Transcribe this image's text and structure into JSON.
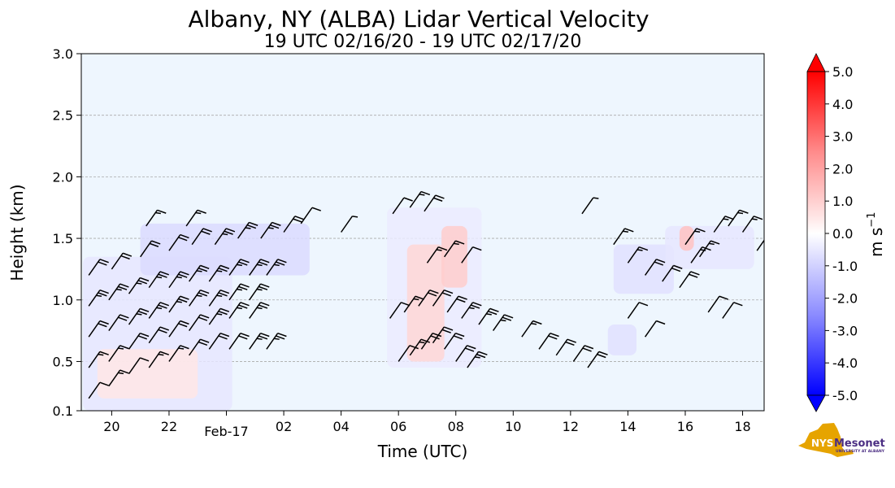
{
  "chart_data": {
    "type": "heatmap",
    "title": "Albany, NY (ALBA) Lidar Vertical Velocity",
    "subtitle": "19 UTC 02/16/20 - 19 UTC 02/17/20",
    "xlabel": "Time (UTC)",
    "ylabel": "Height (km)",
    "xlim_hours_from_00utc_0216": [
      18.94,
      42.75
    ],
    "ylim_km": [
      0.1,
      3.0
    ],
    "x_ticks": [
      {
        "h": 20,
        "label": "20"
      },
      {
        "h": 22,
        "label": "22"
      },
      {
        "h": 26,
        "label": "02"
      },
      {
        "h": 28,
        "label": "04"
      },
      {
        "h": 30,
        "label": "06"
      },
      {
        "h": 32,
        "label": "08"
      },
      {
        "h": 34,
        "label": "10"
      },
      {
        "h": 36,
        "label": "12"
      },
      {
        "h": 38,
        "label": "14"
      },
      {
        "h": 40,
        "label": "16"
      },
      {
        "h": 42,
        "label": "18"
      }
    ],
    "x_date_tick": {
      "h": 24,
      "label": "Feb-17"
    },
    "y_ticks": [
      {
        "v": 0.1,
        "label": "0.1"
      },
      {
        "v": 0.5,
        "label": "0.5"
      },
      {
        "v": 1.0,
        "label": "1.0"
      },
      {
        "v": 1.5,
        "label": "1.5"
      },
      {
        "v": 2.0,
        "label": "2.0"
      },
      {
        "v": 2.5,
        "label": "2.5"
      },
      {
        "v": 3.0,
        "label": "3.0"
      }
    ],
    "grid": "horizontal dashed",
    "colorbar": {
      "label": "m s",
      "label_exponent": "−1",
      "vmin": -5.0,
      "vmax": 5.0,
      "extend": "both",
      "ticks": [
        {
          "v": 5.0,
          "label": "5.0"
        },
        {
          "v": 4.0,
          "label": "4.0"
        },
        {
          "v": 3.0,
          "label": "3.0"
        },
        {
          "v": 2.0,
          "label": "2.0"
        },
        {
          "v": 1.0,
          "label": "1.0"
        },
        {
          "v": 0.0,
          "label": "0.0"
        },
        {
          "v": -1.0,
          "label": "-1.0"
        },
        {
          "v": -2.0,
          "label": "-2.0"
        },
        {
          "v": -3.0,
          "label": "-3.0"
        },
        {
          "v": -4.0,
          "label": "-4.0"
        },
        {
          "v": -5.0,
          "label": "-5.0"
        }
      ]
    },
    "velocity_regions": [
      {
        "t0": 19.0,
        "t1": 24.2,
        "z0": 0.1,
        "z1": 1.35,
        "w": -0.5
      },
      {
        "t0": 21.0,
        "t1": 26.9,
        "z0": 1.2,
        "z1": 1.62,
        "w": -0.7
      },
      {
        "t0": 19.5,
        "t1": 23.0,
        "z0": 0.2,
        "z1": 0.6,
        "w": 0.5
      },
      {
        "t0": 29.6,
        "t1": 32.9,
        "z0": 0.45,
        "z1": 1.75,
        "w": -0.4
      },
      {
        "t0": 30.3,
        "t1": 31.6,
        "z0": 0.5,
        "z1": 1.45,
        "w": 0.8
      },
      {
        "t0": 31.5,
        "t1": 32.4,
        "z0": 1.1,
        "z1": 1.6,
        "w": 1.0
      },
      {
        "t0": 37.5,
        "t1": 39.6,
        "z0": 1.05,
        "z1": 1.45,
        "w": -0.6
      },
      {
        "t0": 39.3,
        "t1": 42.4,
        "z0": 1.25,
        "z1": 1.6,
        "w": -0.5
      },
      {
        "t0": 39.8,
        "t1": 40.3,
        "z0": 1.4,
        "z1": 1.6,
        "w": 1.2
      },
      {
        "t0": 37.3,
        "t1": 38.3,
        "z0": 0.55,
        "z1": 0.8,
        "w": -0.6
      }
    ],
    "wind_barbs": [
      {
        "t": 19.2,
        "z": 0.2,
        "kt": 10
      },
      {
        "t": 19.9,
        "z": 0.3,
        "kt": 15
      },
      {
        "t": 20.6,
        "z": 0.4,
        "kt": 10
      },
      {
        "t": 21.3,
        "z": 0.45,
        "kt": 15
      },
      {
        "t": 22.0,
        "z": 0.5,
        "kt": 15
      },
      {
        "t": 22.7,
        "z": 0.55,
        "kt": 20
      },
      {
        "t": 23.4,
        "z": 0.6,
        "kt": 20
      },
      {
        "t": 24.1,
        "z": 0.6,
        "kt": 20
      },
      {
        "t": 24.8,
        "z": 0.6,
        "kt": 25
      },
      {
        "t": 25.4,
        "z": 0.6,
        "kt": 25
      },
      {
        "t": 19.2,
        "z": 0.45,
        "kt": 15
      },
      {
        "t": 19.9,
        "z": 0.5,
        "kt": 15
      },
      {
        "t": 20.6,
        "z": 0.6,
        "kt": 20
      },
      {
        "t": 21.3,
        "z": 0.65,
        "kt": 20
      },
      {
        "t": 22.0,
        "z": 0.7,
        "kt": 20
      },
      {
        "t": 22.7,
        "z": 0.75,
        "kt": 20
      },
      {
        "t": 23.4,
        "z": 0.8,
        "kt": 25
      },
      {
        "t": 24.1,
        "z": 0.85,
        "kt": 25
      },
      {
        "t": 24.8,
        "z": 0.85,
        "kt": 25
      },
      {
        "t": 19.2,
        "z": 0.7,
        "kt": 20
      },
      {
        "t": 19.9,
        "z": 0.75,
        "kt": 20
      },
      {
        "t": 20.6,
        "z": 0.8,
        "kt": 25
      },
      {
        "t": 21.3,
        "z": 0.85,
        "kt": 25
      },
      {
        "t": 22.0,
        "z": 0.9,
        "kt": 25
      },
      {
        "t": 22.7,
        "z": 0.95,
        "kt": 25
      },
      {
        "t": 23.4,
        "z": 0.95,
        "kt": 25
      },
      {
        "t": 24.1,
        "z": 1.0,
        "kt": 25
      },
      {
        "t": 24.8,
        "z": 1.0,
        "kt": 25
      },
      {
        "t": 19.2,
        "z": 0.95,
        "kt": 25
      },
      {
        "t": 19.9,
        "z": 1.0,
        "kt": 25
      },
      {
        "t": 20.6,
        "z": 1.05,
        "kt": 25
      },
      {
        "t": 21.3,
        "z": 1.1,
        "kt": 25
      },
      {
        "t": 22.0,
        "z": 1.1,
        "kt": 25
      },
      {
        "t": 22.7,
        "z": 1.15,
        "kt": 25
      },
      {
        "t": 23.4,
        "z": 1.15,
        "kt": 25
      },
      {
        "t": 24.1,
        "z": 1.2,
        "kt": 25
      },
      {
        "t": 24.8,
        "z": 1.2,
        "kt": 25
      },
      {
        "t": 25.4,
        "z": 1.2,
        "kt": 25
      },
      {
        "t": 19.2,
        "z": 1.2,
        "kt": 20
      },
      {
        "t": 20.0,
        "z": 1.25,
        "kt": 20
      },
      {
        "t": 21.0,
        "z": 1.35,
        "kt": 20
      },
      {
        "t": 22.0,
        "z": 1.4,
        "kt": 20
      },
      {
        "t": 22.8,
        "z": 1.45,
        "kt": 20
      },
      {
        "t": 23.6,
        "z": 1.45,
        "kt": 25
      },
      {
        "t": 24.4,
        "z": 1.5,
        "kt": 25
      },
      {
        "t": 25.2,
        "z": 1.5,
        "kt": 25
      },
      {
        "t": 26.0,
        "z": 1.55,
        "kt": 20
      },
      {
        "t": 21.2,
        "z": 1.6,
        "kt": 15
      },
      {
        "t": 22.6,
        "z": 1.6,
        "kt": 15
      },
      {
        "t": 26.6,
        "z": 1.62,
        "kt": 10
      },
      {
        "t": 28.0,
        "z": 1.55,
        "kt": 5
      },
      {
        "t": 29.8,
        "z": 1.7,
        "kt": 10
      },
      {
        "t": 30.4,
        "z": 1.75,
        "kt": 15
      },
      {
        "t": 30.9,
        "z": 1.72,
        "kt": 20
      },
      {
        "t": 30.0,
        "z": 0.5,
        "kt": 10
      },
      {
        "t": 30.4,
        "z": 0.55,
        "kt": 15
      },
      {
        "t": 30.8,
        "z": 0.6,
        "kt": 20
      },
      {
        "t": 31.2,
        "z": 0.65,
        "kt": 20
      },
      {
        "t": 31.6,
        "z": 0.6,
        "kt": 20
      },
      {
        "t": 32.0,
        "z": 0.5,
        "kt": 20
      },
      {
        "t": 32.4,
        "z": 0.45,
        "kt": 25
      },
      {
        "t": 29.7,
        "z": 0.85,
        "kt": 10
      },
      {
        "t": 30.2,
        "z": 0.9,
        "kt": 15
      },
      {
        "t": 30.7,
        "z": 0.95,
        "kt": 20
      },
      {
        "t": 31.2,
        "z": 0.95,
        "kt": 20
      },
      {
        "t": 31.7,
        "z": 0.9,
        "kt": 20
      },
      {
        "t": 32.2,
        "z": 0.85,
        "kt": 25
      },
      {
        "t": 32.8,
        "z": 0.8,
        "kt": 25
      },
      {
        "t": 33.3,
        "z": 0.75,
        "kt": 25
      },
      {
        "t": 31.0,
        "z": 1.3,
        "kt": 15
      },
      {
        "t": 31.6,
        "z": 1.35,
        "kt": 15
      },
      {
        "t": 32.2,
        "z": 1.3,
        "kt": 10
      },
      {
        "t": 34.3,
        "z": 0.7,
        "kt": 15
      },
      {
        "t": 34.9,
        "z": 0.6,
        "kt": 20
      },
      {
        "t": 35.5,
        "z": 0.55,
        "kt": 20
      },
      {
        "t": 36.1,
        "z": 0.5,
        "kt": 20
      },
      {
        "t": 36.6,
        "z": 0.45,
        "kt": 20
      },
      {
        "t": 36.4,
        "z": 1.7,
        "kt": 5
      },
      {
        "t": 37.5,
        "z": 1.45,
        "kt": 15
      },
      {
        "t": 38.0,
        "z": 1.3,
        "kt": 15
      },
      {
        "t": 38.6,
        "z": 1.2,
        "kt": 20
      },
      {
        "t": 39.2,
        "z": 1.15,
        "kt": 20
      },
      {
        "t": 39.8,
        "z": 1.1,
        "kt": 20
      },
      {
        "t": 38.0,
        "z": 0.85,
        "kt": 10
      },
      {
        "t": 38.6,
        "z": 0.7,
        "kt": 10
      },
      {
        "t": 40.0,
        "z": 1.45,
        "kt": 15
      },
      {
        "t": 40.5,
        "z": 1.35,
        "kt": 15
      },
      {
        "t": 40.2,
        "z": 1.3,
        "kt": 15
      },
      {
        "t": 41.0,
        "z": 1.55,
        "kt": 15
      },
      {
        "t": 41.5,
        "z": 1.6,
        "kt": 15
      },
      {
        "t": 42.0,
        "z": 1.55,
        "kt": 15
      },
      {
        "t": 42.5,
        "z": 1.4,
        "kt": 10
      },
      {
        "t": 40.8,
        "z": 0.9,
        "kt": 10
      },
      {
        "t": 41.3,
        "z": 0.85,
        "kt": 10
      }
    ]
  },
  "logo": {
    "brand": "NYS",
    "name": "Mesonet",
    "tagline": "UNIVERSITY AT ALBANY"
  }
}
